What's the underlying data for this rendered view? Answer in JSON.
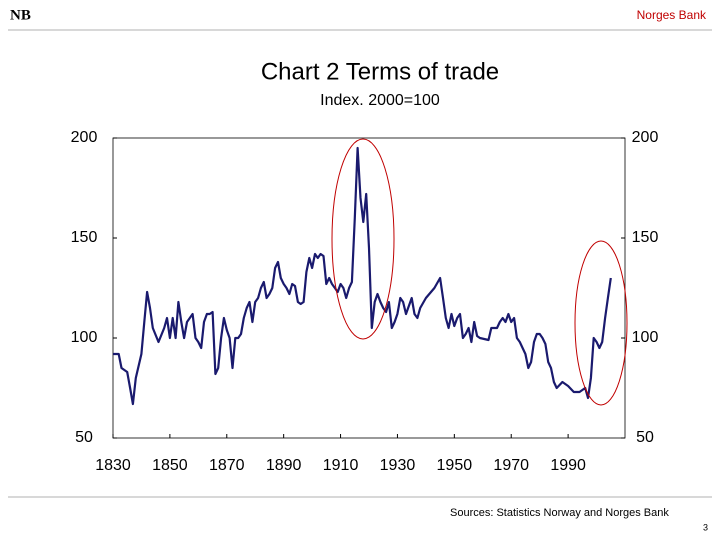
{
  "logo": "NB",
  "header": "Norges Bank",
  "footer": {
    "source": "Sources: Statistics Norway and Norges Bank",
    "page": "3"
  },
  "chart_data": {
    "type": "line",
    "title": "Chart 2 Terms of trade",
    "subtitle": "Index. 2000=100",
    "xlim": [
      1830,
      2010
    ],
    "xticks": [
      1830,
      1850,
      1870,
      1890,
      1910,
      1930,
      1950,
      1970,
      1990
    ],
    "ylim": [
      50,
      200
    ],
    "yticks": [
      50,
      100,
      150,
      200
    ],
    "y2lim": [
      50,
      200
    ],
    "y2ticks": [
      50,
      100,
      150,
      200
    ],
    "series": [
      {
        "name": "Terms of trade",
        "color": "#1a1a6e",
        "x": [
          1830,
          1832,
          1833,
          1835,
          1836,
          1837,
          1838,
          1840,
          1841,
          1842,
          1843,
          1844,
          1846,
          1848,
          1849,
          1850,
          1851,
          1852,
          1853,
          1854,
          1855,
          1856,
          1857,
          1858,
          1859,
          1860,
          1861,
          1862,
          1863,
          1864,
          1865,
          1866,
          1867,
          1868,
          1869,
          1870,
          1871,
          1872,
          1873,
          1874,
          1875,
          1876,
          1877,
          1878,
          1879,
          1880,
          1881,
          1882,
          1883,
          1884,
          1885,
          1886,
          1887,
          1888,
          1889,
          1890,
          1891,
          1892,
          1893,
          1894,
          1895,
          1896,
          1897,
          1898,
          1899,
          1900,
          1901,
          1902,
          1903,
          1904,
          1905,
          1906,
          1907,
          1908,
          1909,
          1910,
          1911,
          1912,
          1913,
          1914,
          1915,
          1916,
          1917,
          1918,
          1919,
          1920,
          1921,
          1922,
          1923,
          1924,
          1925,
          1926,
          1927,
          1928,
          1929,
          1930,
          1931,
          1932,
          1933,
          1935,
          1936,
          1937,
          1938,
          1940,
          1943,
          1945,
          1946,
          1947,
          1948,
          1949,
          1950,
          1951,
          1952,
          1953,
          1954,
          1955,
          1956,
          1957,
          1958,
          1959,
          1962,
          1963,
          1964,
          1965,
          1966,
          1967,
          1968,
          1969,
          1970,
          1971,
          1972,
          1973,
          1974,
          1975,
          1976,
          1977,
          1978,
          1979,
          1980,
          1981,
          1982,
          1983,
          1984,
          1985,
          1986,
          1988,
          1990,
          1992,
          1994,
          1996,
          1997,
          1998,
          1999,
          2000,
          2001,
          2002,
          2003,
          2004,
          2005
        ],
        "values": [
          92,
          92,
          85,
          83,
          75,
          67,
          80,
          92,
          108,
          123,
          115,
          105,
          98,
          105,
          110,
          100,
          110,
          100,
          118,
          108,
          100,
          108,
          110,
          112,
          100,
          98,
          95,
          108,
          112,
          112,
          113,
          82,
          85,
          100,
          110,
          104,
          100,
          85,
          100,
          100,
          102,
          110,
          115,
          118,
          108,
          118,
          120,
          125,
          128,
          120,
          122,
          125,
          135,
          138,
          130,
          127,
          125,
          122,
          127,
          126,
          118,
          117,
          118,
          133,
          140,
          135,
          142,
          140,
          142,
          141,
          127,
          130,
          127,
          125,
          123,
          127,
          125,
          120,
          125,
          128,
          160,
          195,
          170,
          158,
          172,
          145,
          105,
          118,
          122,
          118,
          115,
          113,
          118,
          105,
          108,
          112,
          120,
          118,
          112,
          120,
          112,
          110,
          115,
          120,
          125,
          130,
          120,
          110,
          105,
          112,
          106,
          110,
          112,
          100,
          102,
          105,
          98,
          108,
          101,
          100,
          99,
          105,
          105,
          105,
          108,
          110,
          108,
          112,
          108,
          110,
          100,
          98,
          95,
          92,
          85,
          88,
          98,
          102,
          102,
          100,
          97,
          88,
          85,
          78,
          75,
          78,
          76,
          73,
          73,
          75,
          70,
          80,
          100,
          98,
          95,
          98,
          110,
          120,
          130
        ]
      }
    ]
  }
}
